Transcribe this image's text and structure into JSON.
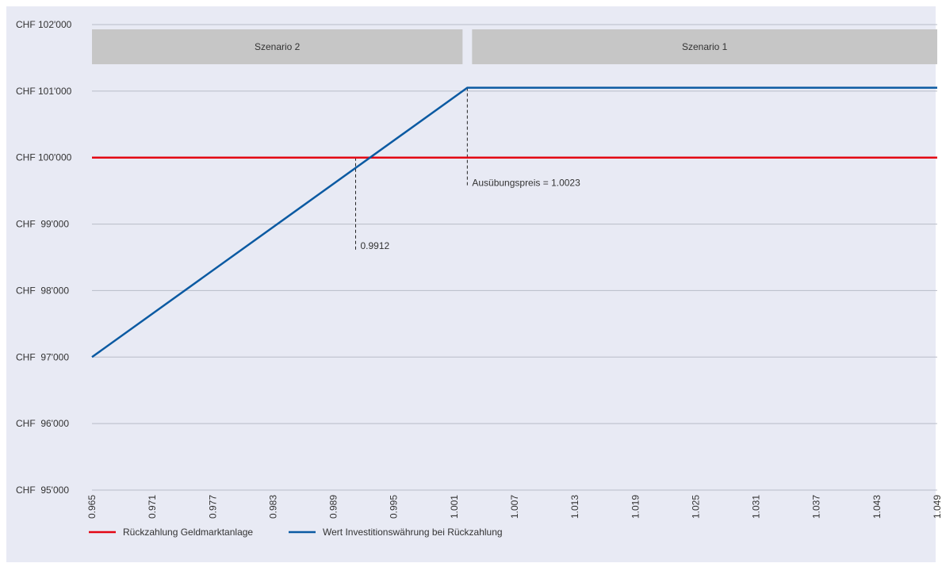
{
  "chart_data": {
    "type": "line",
    "title": "",
    "xlabel": "",
    "ylabel": "",
    "xlim": [
      0.965,
      1.049
    ],
    "ylim": [
      95000,
      102000
    ],
    "x_ticks": [
      0.965,
      0.971,
      0.977,
      0.983,
      0.989,
      0.995,
      1.001,
      1.007,
      1.013,
      1.019,
      1.025,
      1.031,
      1.037,
      1.043,
      1.049
    ],
    "x_tick_labels": [
      "0.965",
      "0.971",
      "0.977",
      "0.983",
      "0.989",
      "0.995",
      "1.001",
      "1.007",
      "1.013",
      "1.019",
      "1.025",
      "1.031",
      "1.037",
      "1.043",
      "1.049"
    ],
    "y_ticks": [
      95000,
      96000,
      97000,
      98000,
      99000,
      100000,
      101000,
      102000
    ],
    "y_tick_labels": [
      "CHF  95'000",
      "CHF  96'000",
      "CHF  97'000",
      "CHF  98'000",
      "CHF  99'000",
      "CHF 100'000",
      "CHF 101'000",
      "CHF 102'000"
    ],
    "grid": true,
    "legend_position": "bottom-left",
    "series": [
      {
        "name": "Rückzahlung Geldmarktanlage",
        "color": "#e30613",
        "points": [
          [
            0.965,
            100000
          ],
          [
            1.049,
            100000
          ]
        ]
      },
      {
        "name": "Wert Investitionswährung bei Rückzahlung",
        "color": "#0b5aa2",
        "points": [
          [
            0.965,
            97000
          ],
          [
            1.0023,
            101050
          ],
          [
            1.049,
            101050
          ]
        ]
      }
    ],
    "scenario_bands": [
      {
        "label": "Szenario 2",
        "x_start": 0.965,
        "x_end": 1.0023
      },
      {
        "label": "Szenario 1",
        "x_start": 1.0023,
        "x_end": 1.049
      }
    ],
    "annotations": [
      {
        "label": "0.9912",
        "x": 0.9912,
        "y_top": 100000,
        "y_bottom": 98600
      },
      {
        "label": "Ausübungspreis = 1.0023",
        "x": 1.0023,
        "y_top": 101050,
        "y_bottom": 99550
      }
    ]
  }
}
